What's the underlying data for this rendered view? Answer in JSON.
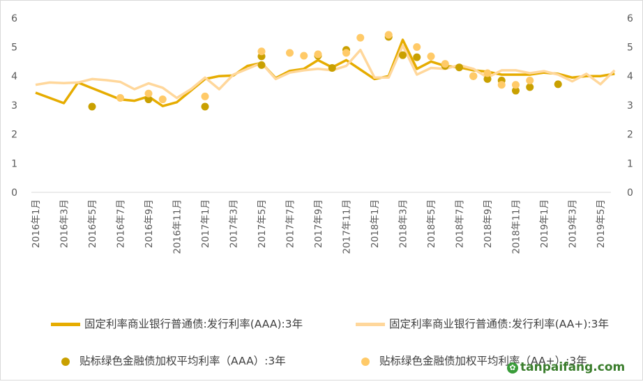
{
  "chart_data": {
    "type": "line",
    "title": "",
    "ylim": [
      0,
      6
    ],
    "yticks": [
      0,
      1,
      2,
      3,
      4,
      5,
      6
    ],
    "dual_y_axis": true,
    "grid": false,
    "legend_position": "bottom",
    "x_start_month": "2016-01",
    "x_labels": [
      "2016年1月",
      "2016年3月",
      "2016年5月",
      "2016年7月",
      "2016年9月",
      "2016年11月",
      "2017年1月",
      "2017年3月",
      "2017年5月",
      "2017年7月",
      "2017年9月",
      "2017年11月",
      "2018年1月",
      "2018年3月",
      "2018年5月",
      "2018年7月",
      "2018年9月",
      "2018年11月",
      "2019年1月",
      "2019年3月",
      "2019年5月"
    ],
    "series": [
      {
        "name": "固定利率商业银行普通债:发行利率(AAA):3年",
        "kind": "line",
        "color": "#E6AC00",
        "points": [
          [
            "2016-01",
            3.43
          ],
          [
            "2016-03",
            3.07
          ],
          [
            "2016-04",
            3.78
          ],
          [
            "2016-07",
            3.2
          ],
          [
            "2016-08",
            3.15
          ],
          [
            "2016-09",
            3.3
          ],
          [
            "2016-10",
            2.97
          ],
          [
            "2016-11",
            3.1
          ],
          [
            "2017-01",
            3.9
          ],
          [
            "2017-02",
            4.0
          ],
          [
            "2017-03",
            4.02
          ],
          [
            "2017-04",
            4.35
          ],
          [
            "2017-05",
            4.45
          ],
          [
            "2017-06",
            3.93
          ],
          [
            "2017-07",
            4.18
          ],
          [
            "2017-08",
            4.25
          ],
          [
            "2017-09",
            4.55
          ],
          [
            "2017-10",
            4.3
          ],
          [
            "2017-11",
            4.55
          ],
          [
            "2018-01",
            3.9
          ],
          [
            "2018-02",
            4.0
          ],
          [
            "2018-03",
            5.25
          ],
          [
            "2018-04",
            4.25
          ],
          [
            "2018-05",
            4.5
          ],
          [
            "2018-06",
            4.35
          ],
          [
            "2018-07",
            4.3
          ],
          [
            "2018-08",
            4.2
          ],
          [
            "2018-09",
            4.15
          ],
          [
            "2018-10",
            4.05
          ],
          [
            "2018-11",
            4.05
          ],
          [
            "2018-12",
            4.05
          ],
          [
            "2019-01",
            4.12
          ],
          [
            "2019-02",
            4.08
          ],
          [
            "2019-03",
            3.95
          ],
          [
            "2019-04",
            4.0
          ],
          [
            "2019-05",
            4.0
          ],
          [
            "2019-06",
            4.08
          ]
        ]
      },
      {
        "name": "固定利率商业银行普通债:发行利率(AA+):3年",
        "kind": "line",
        "color": "#FFD79B",
        "points": [
          [
            "2016-01",
            3.7
          ],
          [
            "2016-02",
            3.78
          ],
          [
            "2016-03",
            3.76
          ],
          [
            "2016-04",
            3.78
          ],
          [
            "2016-05",
            3.9
          ],
          [
            "2016-06",
            3.86
          ],
          [
            "2016-07",
            3.8
          ],
          [
            "2016-08",
            3.55
          ],
          [
            "2016-09",
            3.75
          ],
          [
            "2016-10",
            3.6
          ],
          [
            "2016-11",
            3.25
          ],
          [
            "2016-12",
            3.55
          ],
          [
            "2017-01",
            3.95
          ],
          [
            "2017-02",
            3.55
          ],
          [
            "2017-03",
            4.05
          ],
          [
            "2017-04",
            4.25
          ],
          [
            "2017-05",
            4.45
          ],
          [
            "2017-06",
            3.9
          ],
          [
            "2017-07",
            4.12
          ],
          [
            "2017-08",
            4.2
          ],
          [
            "2017-09",
            4.25
          ],
          [
            "2017-10",
            4.2
          ],
          [
            "2017-11",
            4.35
          ],
          [
            "2017-12",
            4.9
          ],
          [
            "2018-01",
            3.95
          ],
          [
            "2018-02",
            3.95
          ],
          [
            "2018-03",
            5.05
          ],
          [
            "2018-04",
            4.05
          ],
          [
            "2018-05",
            4.28
          ],
          [
            "2018-06",
            4.25
          ],
          [
            "2018-07",
            4.38
          ],
          [
            "2018-08",
            4.25
          ],
          [
            "2018-09",
            3.95
          ],
          [
            "2018-10",
            4.2
          ],
          [
            "2018-11",
            4.2
          ],
          [
            "2018-12",
            4.1
          ],
          [
            "2019-01",
            4.17
          ],
          [
            "2019-02",
            4.05
          ],
          [
            "2019-03",
            3.82
          ],
          [
            "2019-04",
            4.08
          ],
          [
            "2019-05",
            3.72
          ],
          [
            "2019-06",
            4.2
          ]
        ]
      },
      {
        "name": "贴标绿色金融债加权平均利率（AAA）:3年",
        "kind": "scatter",
        "color": "#C9A000",
        "points": [
          [
            "2016-05",
            2.95
          ],
          [
            "2016-09",
            3.2
          ],
          [
            "2017-01",
            2.95
          ],
          [
            "2017-05",
            4.38
          ],
          [
            "2017-05",
            4.68
          ],
          [
            "2017-09",
            4.7
          ],
          [
            "2017-10",
            4.28
          ],
          [
            "2017-11",
            4.9
          ],
          [
            "2018-02",
            5.35
          ],
          [
            "2018-03",
            4.72
          ],
          [
            "2018-04",
            4.65
          ],
          [
            "2018-06",
            4.35
          ],
          [
            "2018-07",
            4.3
          ],
          [
            "2018-08",
            4.0
          ],
          [
            "2018-09",
            3.9
          ],
          [
            "2018-10",
            3.85
          ],
          [
            "2018-11",
            3.5
          ],
          [
            "2018-12",
            3.62
          ],
          [
            "2019-02",
            3.72
          ]
        ]
      },
      {
        "name": "贴标绿色金融债加权平均利率（AA+）:3年",
        "kind": "scatter",
        "color": "#FFCA68",
        "points": [
          [
            "2016-07",
            3.25
          ],
          [
            "2016-09",
            3.4
          ],
          [
            "2016-10",
            3.2
          ],
          [
            "2017-01",
            3.3
          ],
          [
            "2017-05",
            4.85
          ],
          [
            "2017-07",
            4.8
          ],
          [
            "2017-08",
            4.7
          ],
          [
            "2017-09",
            4.75
          ],
          [
            "2017-11",
            4.8
          ],
          [
            "2017-12",
            5.32
          ],
          [
            "2018-02",
            5.42
          ],
          [
            "2018-04",
            5.0
          ],
          [
            "2018-05",
            4.68
          ],
          [
            "2018-06",
            4.42
          ],
          [
            "2018-08",
            4.0
          ],
          [
            "2018-09",
            4.1
          ],
          [
            "2018-10",
            3.7
          ],
          [
            "2018-11",
            3.7
          ],
          [
            "2018-12",
            3.85
          ]
        ]
      }
    ]
  },
  "watermark": {
    "icon": "tanpaifang-logo-icon",
    "text": "tanpaifang.com"
  }
}
